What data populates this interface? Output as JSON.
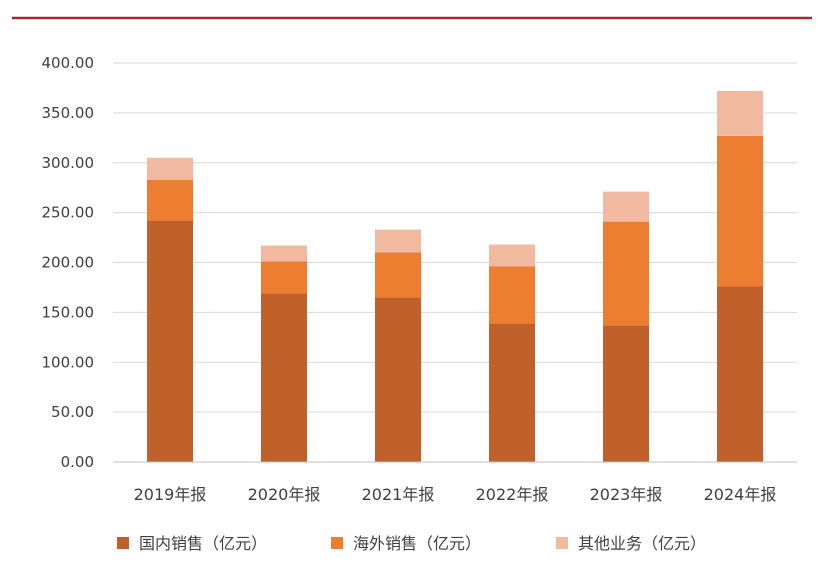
{
  "chart_data": {
    "type": "bar",
    "stacked": true,
    "categories": [
      "2019年报",
      "2020年报",
      "2021年报",
      "2022年报",
      "2023年报",
      "2024年报"
    ],
    "series": [
      {
        "name": "国内销售（亿元）",
        "color": "#c0612b",
        "values": [
          242,
          169,
          165,
          139,
          137,
          176
        ]
      },
      {
        "name": "海外销售（亿元）",
        "color": "#ed7d31",
        "values": [
          41,
          32,
          45,
          57,
          104,
          151
        ]
      },
      {
        "name": "其他业务（亿元）",
        "color": "#f2b9a1",
        "values": [
          22,
          16,
          23,
          22,
          30,
          45
        ]
      }
    ],
    "yticks": [
      "0.00",
      "50.00",
      "100.00",
      "150.00",
      "200.00",
      "250.00",
      "300.00",
      "350.00",
      "400.00"
    ],
    "ylim": [
      0,
      400
    ],
    "grid": true,
    "legend_position": "bottom",
    "top_rule_color": "#a32a2a"
  }
}
